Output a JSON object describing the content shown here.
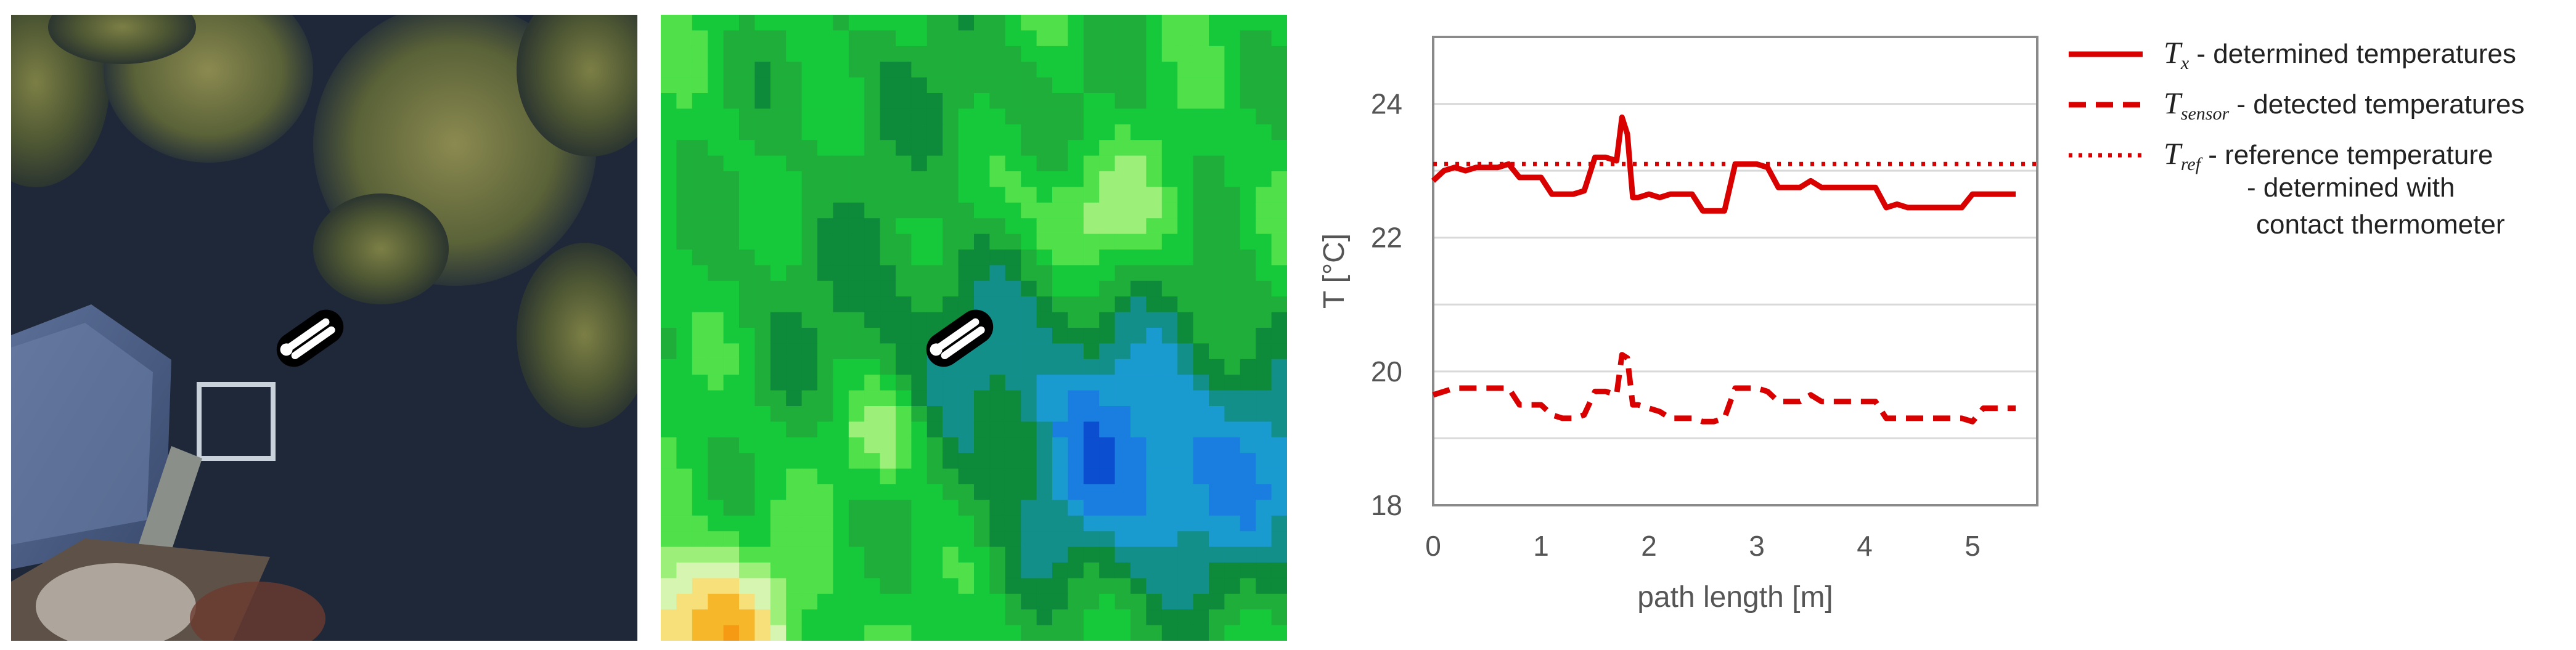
{
  "images": {
    "aerial": {
      "icon": "thermometer-icon"
    },
    "thermal": {
      "icon": "thermometer-icon"
    }
  },
  "chart_data": {
    "type": "line",
    "title": "",
    "xlabel": "path length [m]",
    "ylabel": "T [°C]",
    "xlim": [
      0,
      5.6
    ],
    "ylim": [
      18,
      25
    ],
    "xticks": [
      0,
      1,
      2,
      3,
      4,
      5
    ],
    "yticks": [
      18,
      20,
      22,
      24
    ],
    "grid": "horizontal",
    "legend_position": "right-outside",
    "series": [
      {
        "name_symbol": "T",
        "name_subscript": "x",
        "name_suffix": " - determined temperatures",
        "style": "solid",
        "color": "#d90000",
        "x": [
          0.0,
          0.1,
          0.2,
          0.3,
          0.4,
          0.5,
          0.6,
          0.7,
          0.8,
          0.9,
          1.0,
          1.1,
          1.2,
          1.3,
          1.4,
          1.5,
          1.6,
          1.7,
          1.75,
          1.8,
          1.85,
          1.9,
          2.0,
          2.1,
          2.2,
          2.3,
          2.4,
          2.5,
          2.6,
          2.7,
          2.8,
          2.9,
          3.0,
          3.1,
          3.2,
          3.3,
          3.4,
          3.5,
          3.6,
          3.7,
          3.8,
          3.9,
          4.0,
          4.1,
          4.2,
          4.3,
          4.4,
          4.5,
          4.6,
          4.7,
          4.8,
          4.9,
          5.0,
          5.1,
          5.2,
          5.3,
          5.4
        ],
        "values": [
          22.85,
          23.0,
          23.05,
          23.0,
          23.05,
          23.05,
          23.05,
          23.1,
          22.9,
          22.9,
          22.9,
          22.65,
          22.65,
          22.65,
          22.7,
          23.2,
          23.2,
          23.15,
          23.8,
          23.55,
          22.6,
          22.6,
          22.65,
          22.6,
          22.65,
          22.65,
          22.65,
          22.4,
          22.4,
          22.4,
          23.1,
          23.1,
          23.1,
          23.05,
          22.75,
          22.75,
          22.75,
          22.85,
          22.75,
          22.75,
          22.75,
          22.75,
          22.75,
          22.75,
          22.45,
          22.5,
          22.45,
          22.45,
          22.45,
          22.45,
          22.45,
          22.45,
          22.65,
          22.65,
          22.65,
          22.65,
          22.65
        ]
      },
      {
        "name_symbol": "T",
        "name_subscript": "sensor",
        "name_suffix": " - detected temperatures",
        "style": "dashed",
        "color": "#d90000",
        "x": [
          0.0,
          0.1,
          0.2,
          0.3,
          0.4,
          0.5,
          0.6,
          0.7,
          0.8,
          0.9,
          1.0,
          1.1,
          1.2,
          1.3,
          1.4,
          1.5,
          1.6,
          1.7,
          1.75,
          1.8,
          1.85,
          1.9,
          2.0,
          2.1,
          2.2,
          2.3,
          2.4,
          2.5,
          2.6,
          2.7,
          2.8,
          2.9,
          3.0,
          3.1,
          3.2,
          3.3,
          3.4,
          3.5,
          3.6,
          3.7,
          3.8,
          3.9,
          4.0,
          4.1,
          4.2,
          4.3,
          4.4,
          4.5,
          4.6,
          4.7,
          4.8,
          4.9,
          5.0,
          5.1,
          5.2,
          5.3,
          5.4
        ],
        "values": [
          19.65,
          19.7,
          19.75,
          19.75,
          19.75,
          19.75,
          19.75,
          19.75,
          19.5,
          19.5,
          19.5,
          19.35,
          19.3,
          19.3,
          19.35,
          19.7,
          19.7,
          19.65,
          20.25,
          20.2,
          19.5,
          19.5,
          19.45,
          19.4,
          19.3,
          19.3,
          19.3,
          19.25,
          19.25,
          19.3,
          19.75,
          19.75,
          19.75,
          19.7,
          19.55,
          19.55,
          19.55,
          19.65,
          19.55,
          19.55,
          19.55,
          19.55,
          19.55,
          19.55,
          19.3,
          19.3,
          19.3,
          19.3,
          19.3,
          19.3,
          19.3,
          19.3,
          19.25,
          19.45,
          19.45,
          19.45,
          19.45
        ]
      },
      {
        "name_symbol": "T",
        "name_subscript": "ref",
        "name_suffix": " - reference temperature",
        "name_extra_lines": [
          "- determined with",
          "contact thermometer"
        ],
        "style": "dotted",
        "color": "#d90000",
        "x": [
          0.0,
          5.6
        ],
        "values": [
          23.1,
          23.1
        ]
      }
    ]
  }
}
